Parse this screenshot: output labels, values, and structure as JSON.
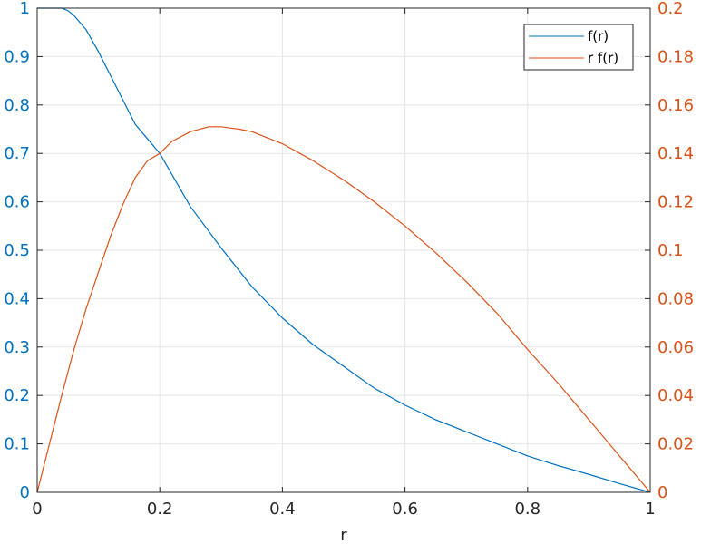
{
  "chart_data": {
    "type": "line",
    "xlabel": "r",
    "xlim": [
      0,
      1
    ],
    "ylim_left": [
      0,
      1
    ],
    "ylim_right": [
      0,
      0.2
    ],
    "x_ticks": [
      "0",
      "0.2",
      "0.4",
      "0.6",
      "0.8",
      "1"
    ],
    "y_left_ticks": [
      "0",
      "0.1",
      "0.2",
      "0.3",
      "0.4",
      "0.5",
      "0.6",
      "0.7",
      "0.8",
      "0.9",
      "1"
    ],
    "y_right_ticks": [
      "0",
      "0.02",
      "0.04",
      "0.06",
      "0.08",
      "0.1",
      "0.12",
      "0.14",
      "0.16",
      "0.18",
      "0.2"
    ],
    "grid": true,
    "legend_position": "top-right",
    "colors": {
      "left_axis": "#0072bd",
      "right_axis": "#d95319",
      "series_f": "#0072bd",
      "series_rf": "#d95319",
      "grid": "#e6e6e6",
      "axis": "#262626"
    },
    "series": [
      {
        "name": "f(r)",
        "axis": "left",
        "x": [
          0,
          0.02,
          0.04,
          0.05,
          0.06,
          0.08,
          0.1,
          0.12,
          0.14,
          0.16,
          0.18,
          0.2,
          0.25,
          0.3,
          0.35,
          0.4,
          0.45,
          0.5,
          0.55,
          0.6,
          0.65,
          0.7,
          0.75,
          0.8,
          0.85,
          0.9,
          0.95,
          1
        ],
        "y": [
          1,
          1,
          1,
          0.995,
          0.985,
          0.955,
          0.91,
          0.86,
          0.81,
          0.76,
          0.73,
          0.7,
          0.59,
          0.505,
          0.425,
          0.36,
          0.305,
          0.26,
          0.215,
          0.18,
          0.15,
          0.125,
          0.1,
          0.075,
          0.055,
          0.037,
          0.018,
          0
        ]
      },
      {
        "name": "r f(r)",
        "axis": "right",
        "x": [
          0,
          0.02,
          0.04,
          0.06,
          0.08,
          0.1,
          0.12,
          0.14,
          0.16,
          0.18,
          0.2,
          0.22,
          0.25,
          0.28,
          0.3,
          0.33,
          0.35,
          0.4,
          0.45,
          0.5,
          0.55,
          0.6,
          0.65,
          0.7,
          0.75,
          0.8,
          0.85,
          0.9,
          0.95,
          1
        ],
        "y": [
          0,
          0.02,
          0.04,
          0.059,
          0.076,
          0.091,
          0.106,
          0.119,
          0.13,
          0.137,
          0.14,
          0.145,
          0.149,
          0.151,
          0.151,
          0.15,
          0.149,
          0.144,
          0.137,
          0.129,
          0.12,
          0.11,
          0.099,
          0.087,
          0.074,
          0.059,
          0.045,
          0.03,
          0.015,
          0
        ]
      }
    ]
  }
}
